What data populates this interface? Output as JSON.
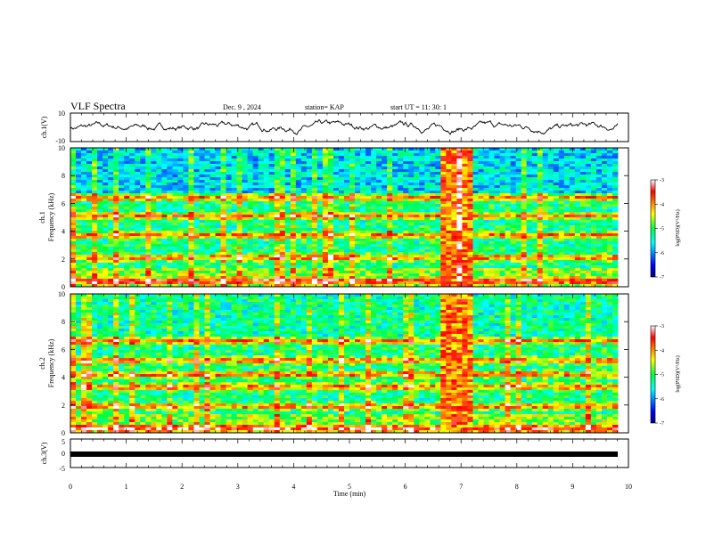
{
  "header": {
    "title": "VLF Spectra",
    "date": "Dec. 9 , 2024",
    "station": "station= KAP",
    "start": "start UT = 11: 30: 1"
  },
  "chart_data": [
    {
      "type": "line",
      "panel": "waveform-ch1",
      "ylabel": "ch.1(V)",
      "ylim": [
        -10,
        10
      ],
      "yticks": [
        "10",
        "-10"
      ],
      "xlim": [
        0,
        10
      ],
      "grid": false
    },
    {
      "type": "heatmap",
      "panel": "spectrogram-ch1",
      "ylabel": "ch.1\nFrequency (kHz)",
      "ylim": [
        0,
        10
      ],
      "yticks": [
        "0",
        "2",
        "4",
        "6",
        "8",
        "10"
      ],
      "xlim": [
        0,
        10
      ],
      "colorbar": {
        "label": "log(PSD)(V²/Hz)",
        "range": [
          -7,
          -3
        ],
        "ticks": [
          "-3",
          "-4",
          "-5",
          "-6",
          "-7"
        ]
      },
      "features": {
        "strong_bands_khz": [
          0.4,
          2.1,
          3.7,
          5.1,
          6.4
        ],
        "broadband_interval_min": [
          6.6,
          7.2
        ]
      }
    },
    {
      "type": "heatmap",
      "panel": "spectrogram-ch2",
      "ylabel": "ch.2\nFrequency (kHz)",
      "ylim": [
        0,
        10
      ],
      "yticks": [
        "0",
        "2",
        "4",
        "6",
        "8",
        "10"
      ],
      "xlim": [
        0,
        10
      ],
      "colorbar": {
        "label": "log(PSD)(V²/Hz)",
        "range": [
          -7,
          -3
        ],
        "ticks": [
          "-3",
          "-4",
          "-5",
          "-6",
          "-7"
        ]
      },
      "features": {
        "strong_bands_khz": [
          0.3,
          1.9,
          3.3,
          4.2,
          5.2,
          6.6
        ],
        "broadband_interval_min": [
          6.6,
          7.2
        ]
      }
    },
    {
      "type": "line",
      "panel": "waveform-ch3",
      "ylabel": "ch.3(V)",
      "ylim": [
        -5,
        5
      ],
      "yticks": [
        "5",
        "0",
        "-5"
      ],
      "xlim": [
        0,
        10
      ],
      "value": -0.3,
      "xlabel": "Time (min)",
      "xticks": [
        "0",
        "1",
        "2",
        "3",
        "4",
        "5",
        "6",
        "7",
        "8",
        "9",
        "10"
      ]
    }
  ]
}
